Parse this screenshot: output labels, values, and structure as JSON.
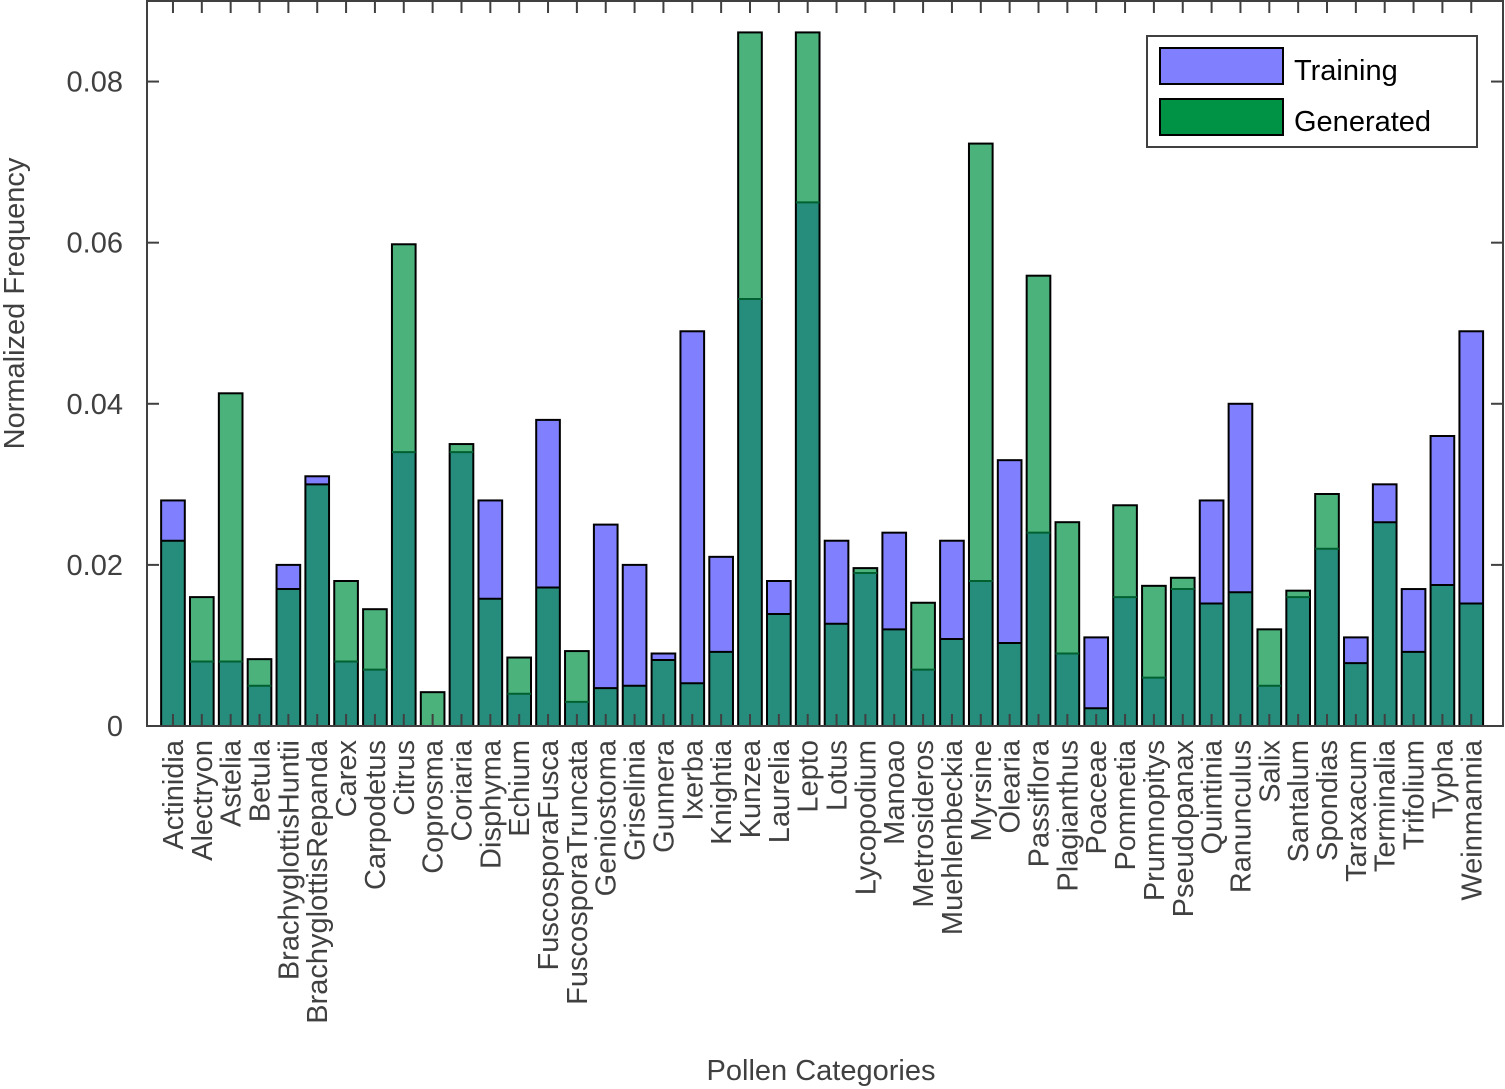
{
  "chart_data": {
    "type": "bar",
    "title": "",
    "xlabel": "Pollen Categories",
    "ylabel": "Normalized Frequency",
    "ylim": [
      0,
      0.09
    ],
    "yticks": [
      0,
      0.02,
      0.04,
      0.06,
      0.08
    ],
    "ytick_labels": [
      "0",
      "0.02",
      "0.04",
      "0.06",
      "0.08"
    ],
    "grid": false,
    "legend_position": "top-right",
    "overlay": true,
    "categories": [
      "Actinidia",
      "Alectryon",
      "Astelia",
      "Betula",
      "BrachyglottisHuntii",
      "BrachyglottisRepanda",
      "Carex",
      "Carpodetus",
      "Citrus",
      "Coprosma",
      "Coriaria",
      "Disphyma",
      "Echium",
      "FuscosporaFusca",
      "FuscosporaTruncata",
      "Geniostoma",
      "Griselinia",
      "Gunnera",
      "Ixerba",
      "Knightia",
      "Kunzea",
      "Laurelia",
      "Lepto",
      "Lotus",
      "Lycopodium",
      "Manoao",
      "Metrosideros",
      "Muehlenbeckia",
      "Myrsine",
      "Olearia",
      "Passiflora",
      "Plagianthus",
      "Poaceae",
      "Pommetia",
      "Prumnopitys",
      "Pseudopanax",
      "Quintinia",
      "Ranunculus",
      "Salix",
      "Santalum",
      "Spondias",
      "Taraxacum",
      "Terminalia",
      "Trifolium",
      "Typha",
      "Weinmannia"
    ],
    "series": [
      {
        "name": "Training",
        "color": "#8080ff",
        "values": [
          0.028,
          0.008,
          0.008,
          0.005,
          0.02,
          0.031,
          0.008,
          0.007,
          0.034,
          0.0,
          0.034,
          0.028,
          0.004,
          0.038,
          0.003,
          0.025,
          0.02,
          0.009,
          0.049,
          0.021,
          0.053,
          0.018,
          0.065,
          0.023,
          0.019,
          0.024,
          0.007,
          0.023,
          0.018,
          0.033,
          0.024,
          0.009,
          0.011,
          0.016,
          0.006,
          0.017,
          0.028,
          0.04,
          0.005,
          0.016,
          0.022,
          0.011,
          0.03,
          0.017,
          0.036,
          0.049
        ]
      },
      {
        "name": "Generated",
        "color": "#009245",
        "values": [
          0.023,
          0.016,
          0.0413,
          0.0083,
          0.017,
          0.03,
          0.018,
          0.0145,
          0.0598,
          0.0042,
          0.035,
          0.0158,
          0.0085,
          0.0172,
          0.0093,
          0.0047,
          0.005,
          0.0082,
          0.0053,
          0.0092,
          0.0861,
          0.0139,
          0.0861,
          0.0127,
          0.0196,
          0.012,
          0.0153,
          0.0108,
          0.0723,
          0.0103,
          0.0559,
          0.0253,
          0.0022,
          0.0274,
          0.0174,
          0.0184,
          0.0152,
          0.0166,
          0.012,
          0.0168,
          0.0288,
          0.0078,
          0.0253,
          0.0092,
          0.0175,
          0.0152
        ]
      }
    ]
  }
}
